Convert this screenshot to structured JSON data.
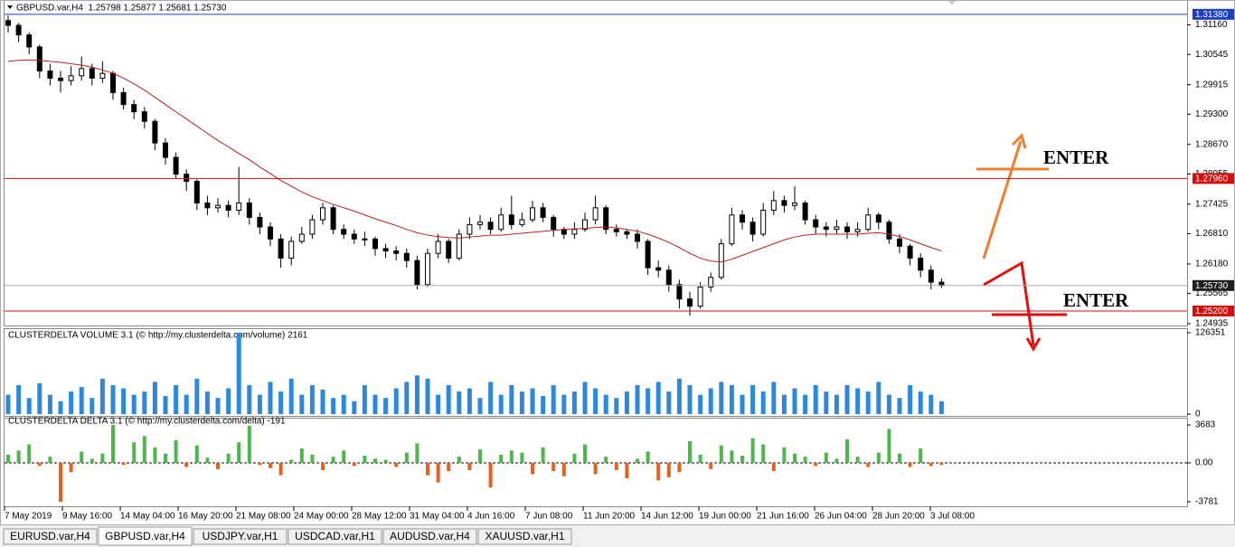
{
  "header": {
    "title": "GBPUSD.var,H4  1.25798 1.25877 1.25681 1.25730"
  },
  "time_labels": [
    "7 May 2019",
    "9 May 16:00",
    "14 May 04:00",
    "16 May 20:00",
    "21 May 08:00",
    "24 May 00:00",
    "28 May 12:00",
    "31 May 04:00",
    "4 Jun 16:00",
    "7 Jun 08:00",
    "11 Jun 20:00",
    "14 Jun 12:00",
    "19 Jun 00:00",
    "21 Jun 16:00",
    "26 Jun 04:00",
    "28 Jun 20:00",
    "3 Jul 08:00"
  ],
  "tabs": [
    "EURUSD.var,H4",
    "GBPUSD.var,H4",
    "USDJPY.var,H1",
    "USDCAD.var,H1",
    "AUDUSD.var,H4",
    "XAUUSD.var,H1"
  ],
  "active_tab": 1,
  "annotations": [
    {
      "text": "ENTER",
      "color": "#ed7d31"
    },
    {
      "text": "ENTER",
      "color": "#e01010"
    }
  ],
  "chart_data": [
    {
      "type": "candlestick",
      "open": [
        1.3125,
        1.3115,
        1.3095,
        1.307,
        1.302,
        1.3005,
        1.3,
        1.301,
        1.3025,
        1.3005,
        1.3015,
        1.2975,
        1.295,
        1.2935,
        1.2915,
        1.287,
        1.284,
        1.2805,
        1.279,
        1.2745,
        1.2735,
        1.274,
        1.273,
        1.2745,
        1.2715,
        1.2695,
        1.267,
        1.263,
        1.2665,
        1.268,
        1.271,
        1.2735,
        1.269,
        1.268,
        1.267,
        1.267,
        1.265,
        1.2645,
        1.264,
        1.2625,
        1.2575,
        1.264,
        1.2665,
        1.263,
        1.268,
        1.27,
        1.2705,
        1.269,
        1.272,
        1.27,
        1.271,
        1.2735,
        1.2715,
        1.269,
        1.268,
        1.269,
        1.271,
        1.2735,
        1.269,
        1.2685,
        1.268,
        1.2665,
        1.261,
        1.2605,
        1.2575,
        1.2545,
        1.253,
        1.257,
        1.259,
        1.266,
        1.272,
        1.2705,
        1.268,
        1.273,
        1.275,
        1.274,
        1.2745,
        1.271,
        1.2695,
        1.269,
        1.2695,
        1.2685,
        1.269,
        1.272,
        1.2705,
        1.267,
        1.2655,
        1.263,
        1.2605,
        1.258
      ],
      "high": [
        1.3135,
        1.312,
        1.31,
        1.3075,
        1.3035,
        1.302,
        1.303,
        1.305,
        1.3035,
        1.304,
        1.302,
        1.2985,
        1.296,
        1.2945,
        1.292,
        1.288,
        1.285,
        1.2815,
        1.2795,
        1.276,
        1.2755,
        1.275,
        1.282,
        1.2755,
        1.2725,
        1.2705,
        1.268,
        1.2675,
        1.2695,
        1.272,
        1.2745,
        1.274,
        1.27,
        1.269,
        1.2685,
        1.2675,
        1.266,
        1.2655,
        1.265,
        1.2635,
        1.265,
        1.268,
        1.267,
        1.269,
        1.2715,
        1.272,
        1.2715,
        1.2735,
        1.276,
        1.2725,
        1.275,
        1.2745,
        1.272,
        1.2695,
        1.2705,
        1.2725,
        1.276,
        1.274,
        1.27,
        1.269,
        1.269,
        1.267,
        1.2625,
        1.2615,
        1.2585,
        1.256,
        1.258,
        1.26,
        1.267,
        1.2735,
        1.273,
        1.2715,
        1.2745,
        1.277,
        1.276,
        1.278,
        1.275,
        1.272,
        1.2705,
        1.271,
        1.2705,
        1.2705,
        1.2735,
        1.2725,
        1.271,
        1.268,
        1.266,
        1.264,
        1.2615,
        1.2588
      ],
      "low": [
        1.31,
        1.308,
        1.3055,
        1.3005,
        1.299,
        1.2975,
        1.299,
        1.3,
        1.299,
        1.2995,
        1.296,
        1.294,
        1.292,
        1.29,
        1.2855,
        1.2825,
        1.2795,
        1.277,
        1.273,
        1.272,
        1.2725,
        1.2715,
        1.272,
        1.27,
        1.268,
        1.2655,
        1.261,
        1.2615,
        1.266,
        1.267,
        1.27,
        1.268,
        1.267,
        1.266,
        1.2655,
        1.2635,
        1.263,
        1.2625,
        1.261,
        1.2565,
        1.257,
        1.263,
        1.262,
        1.2625,
        1.267,
        1.269,
        1.268,
        1.2685,
        1.269,
        1.2695,
        1.2705,
        1.2705,
        1.2675,
        1.267,
        1.267,
        1.2685,
        1.27,
        1.268,
        1.2675,
        1.267,
        1.265,
        1.2595,
        1.259,
        1.256,
        1.2525,
        1.251,
        1.2525,
        1.256,
        1.2585,
        1.2655,
        1.269,
        1.2665,
        1.2675,
        1.272,
        1.2725,
        1.273,
        1.27,
        1.268,
        1.2675,
        1.268,
        1.267,
        1.2675,
        1.2685,
        1.269,
        1.266,
        1.264,
        1.2615,
        1.259,
        1.2565,
        1.2568
      ],
      "close": [
        1.3115,
        1.3095,
        1.307,
        1.302,
        1.3005,
        1.3,
        1.301,
        1.3025,
        1.3005,
        1.3015,
        1.2975,
        1.295,
        1.2935,
        1.2915,
        1.287,
        1.284,
        1.2805,
        1.279,
        1.2745,
        1.2735,
        1.274,
        1.273,
        1.2745,
        1.2715,
        1.2695,
        1.267,
        1.263,
        1.2665,
        1.268,
        1.271,
        1.2735,
        1.269,
        1.268,
        1.267,
        1.267,
        1.265,
        1.2645,
        1.264,
        1.2625,
        1.2575,
        1.264,
        1.2665,
        1.263,
        1.268,
        1.27,
        1.2705,
        1.269,
        1.272,
        1.27,
        1.271,
        1.2735,
        1.2715,
        1.269,
        1.268,
        1.269,
        1.271,
        1.2735,
        1.269,
        1.2685,
        1.268,
        1.2665,
        1.261,
        1.2605,
        1.2575,
        1.2545,
        1.253,
        1.257,
        1.259,
        1.266,
        1.272,
        1.2705,
        1.268,
        1.273,
        1.275,
        1.274,
        1.2745,
        1.271,
        1.2695,
        1.269,
        1.2695,
        1.2685,
        1.269,
        1.272,
        1.2705,
        1.267,
        1.2655,
        1.263,
        1.2605,
        1.258,
        1.2573
      ],
      "ma": {
        "color": "#b22222",
        "values": [
          1.304,
          1.3042,
          1.3043,
          1.3042,
          1.304,
          1.3038,
          1.3035,
          1.3032,
          1.3028,
          1.3022,
          1.3015,
          1.3005,
          1.2993,
          1.298,
          1.2965,
          1.295,
          1.2935,
          1.292,
          1.2905,
          1.289,
          1.2875,
          1.2862,
          1.2848,
          1.2835,
          1.282,
          1.2806,
          1.2792,
          1.278,
          1.2768,
          1.2758,
          1.275,
          1.2742,
          1.2735,
          1.2728,
          1.272,
          1.2712,
          1.2705,
          1.2698,
          1.269,
          1.2683,
          1.2678,
          1.2675,
          1.2673,
          1.2672,
          1.2674,
          1.2676,
          1.2678,
          1.2678,
          1.268,
          1.2682,
          1.2684,
          1.2686,
          1.2688,
          1.269,
          1.2691,
          1.2692,
          1.2694,
          1.2695,
          1.2693,
          1.269,
          1.2686,
          1.268,
          1.2672,
          1.2663,
          1.2652,
          1.264,
          1.263,
          1.2624,
          1.2622,
          1.2628,
          1.2636,
          1.2644,
          1.2652,
          1.266,
          1.2668,
          1.2674,
          1.2678,
          1.268,
          1.268,
          1.268,
          1.268,
          1.268,
          1.2682,
          1.2683,
          1.268,
          1.2675,
          1.2668,
          1.266,
          1.2652,
          1.2645
        ]
      },
      "ylim": [
        1.2486,
        1.3149
      ],
      "yticks": [
        {
          "value": 1.3116,
          "label": "1.31160"
        },
        {
          "value": 1.30545,
          "label": "1.30545"
        },
        {
          "value": 1.29915,
          "label": "1.29915"
        },
        {
          "value": 1.293,
          "label": "1.29300"
        },
        {
          "value": 1.2867,
          "label": "1.28670"
        },
        {
          "value": 1.28055,
          "label": "1.28055"
        },
        {
          "value": 1.27425,
          "label": "1.27425"
        },
        {
          "value": 1.2681,
          "label": "1.26810"
        },
        {
          "value": 1.2618,
          "label": "1.26180"
        },
        {
          "value": 1.25565,
          "label": "1.25565"
        },
        {
          "value": 1.24935,
          "label": "1.24935"
        }
      ],
      "levels": [
        {
          "value": 1.3138,
          "label": "1.31380",
          "color": "#1c3fbf"
        },
        {
          "value": 1.2796,
          "label": "1.27960",
          "color": "#d01010"
        },
        {
          "value": 1.2573,
          "label": "1.25730",
          "color": "#202020"
        },
        {
          "value": 1.252,
          "label": "1.25200",
          "color": "#d01010"
        }
      ]
    },
    {
      "type": "bar",
      "title": "CLUSTERDELTA VOLUME 3.1 (© http://my.clusterdelta.com/volume) 2161",
      "color": "#2b88dc",
      "values": [
        30000,
        45000,
        25000,
        48000,
        30000,
        20000,
        35000,
        42000,
        25000,
        55000,
        45000,
        40000,
        30000,
        35000,
        50000,
        28000,
        45000,
        30000,
        55000,
        35000,
        25000,
        40000,
        126351,
        45000,
        30000,
        50000,
        35000,
        55000,
        30000,
        45000,
        38000,
        25000,
        30000,
        20000,
        45000,
        30000,
        25000,
        40000,
        50000,
        60000,
        55000,
        30000,
        45000,
        35000,
        40000,
        25000,
        50000,
        30000,
        45000,
        35000,
        40000,
        28000,
        45000,
        30000,
        35000,
        50000,
        40000,
        30000,
        25000,
        35000,
        45000,
        40000,
        50000,
        35000,
        55000,
        45000,
        30000,
        40000,
        50000,
        45000,
        30000,
        45000,
        35000,
        50000,
        30000,
        40000,
        30000,
        45000,
        35000,
        30000,
        45000,
        40000,
        35000,
        50000,
        30000,
        25000,
        45000,
        35000,
        30000,
        20000
      ],
      "ylim": [
        0,
        126351
      ],
      "yticks": [
        126351,
        0
      ]
    },
    {
      "type": "delta",
      "title": "CLUSTERDELTA DELTA 3.1 (© http://my.clusterdelta.com/delta) -191",
      "positive_color": "#4cb84c",
      "negative_color": "#e2621e",
      "values": [
        800,
        1200,
        1800,
        -300,
        600,
        -3781,
        -900,
        1100,
        400,
        900,
        3683,
        -200,
        2000,
        2600,
        1500,
        900,
        2200,
        -400,
        1700,
        500,
        -600,
        900,
        2000,
        3600,
        -200,
        -500,
        -1200,
        300,
        1400,
        800,
        -700,
        600,
        1200,
        -300,
        700,
        400,
        300,
        -400,
        1000,
        1900,
        -1200,
        -1900,
        -800,
        600,
        -700,
        1300,
        -2400,
        800,
        1200,
        1000,
        -1100,
        1500,
        -800,
        -1300,
        900,
        1800,
        -1100,
        600,
        -700,
        -1500,
        400,
        1100,
        -1700,
        -1400,
        -900,
        2100,
        800,
        -600,
        1700,
        1200,
        700,
        2400,
        1800,
        -800,
        1500,
        900,
        600,
        -300,
        1000,
        400,
        2300,
        600,
        -400,
        1000,
        3300,
        900,
        -400,
        1400,
        -300,
        -200
      ],
      "ylim": [
        -4220,
        4300
      ],
      "yticks": [
        3683,
        {
          "value": 0,
          "label": "0.00"
        },
        -3781
      ]
    }
  ]
}
